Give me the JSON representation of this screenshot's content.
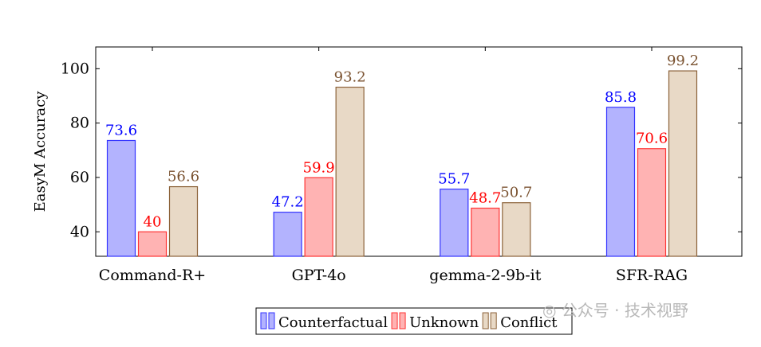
{
  "chart_data": {
    "type": "bar",
    "title": "",
    "xlabel": "",
    "ylabel": "EasyM Accuracy",
    "ylim": [
      31,
      108
    ],
    "yticks": [
      40,
      60,
      80,
      100
    ],
    "categories": [
      "Command-R+",
      "GPT-4o",
      "gemma-2-9b-it",
      "SFR-RAG"
    ],
    "series": [
      {
        "name": "Counterfactual",
        "values": [
          73.6,
          47.2,
          55.7,
          85.8
        ],
        "labels": [
          "73.6",
          "47.2",
          "55.7",
          "85.8"
        ],
        "color": "#b3b3fe",
        "stroke": "#3333ff",
        "label_color": "#0000ff"
      },
      {
        "name": "Unknown",
        "values": [
          40,
          59.9,
          48.7,
          70.6
        ],
        "labels": [
          "40",
          "59.9",
          "48.7",
          "70.6"
        ],
        "color": "#ffb3b3",
        "stroke": "#ff3333",
        "label_color": "#ff0000"
      },
      {
        "name": "Conflict",
        "values": [
          56.6,
          93.2,
          50.7,
          99.2
        ],
        "labels": [
          "56.6",
          "93.2",
          "50.7",
          "99.2"
        ],
        "color": "#e8d9c6",
        "stroke": "#8c6239",
        "label_color": "#7a5230"
      }
    ],
    "grid": false,
    "legend_position": "bottom-center"
  },
  "watermark": {
    "text": "公众号 · 技术视野",
    "icon": "wechat-icon"
  }
}
